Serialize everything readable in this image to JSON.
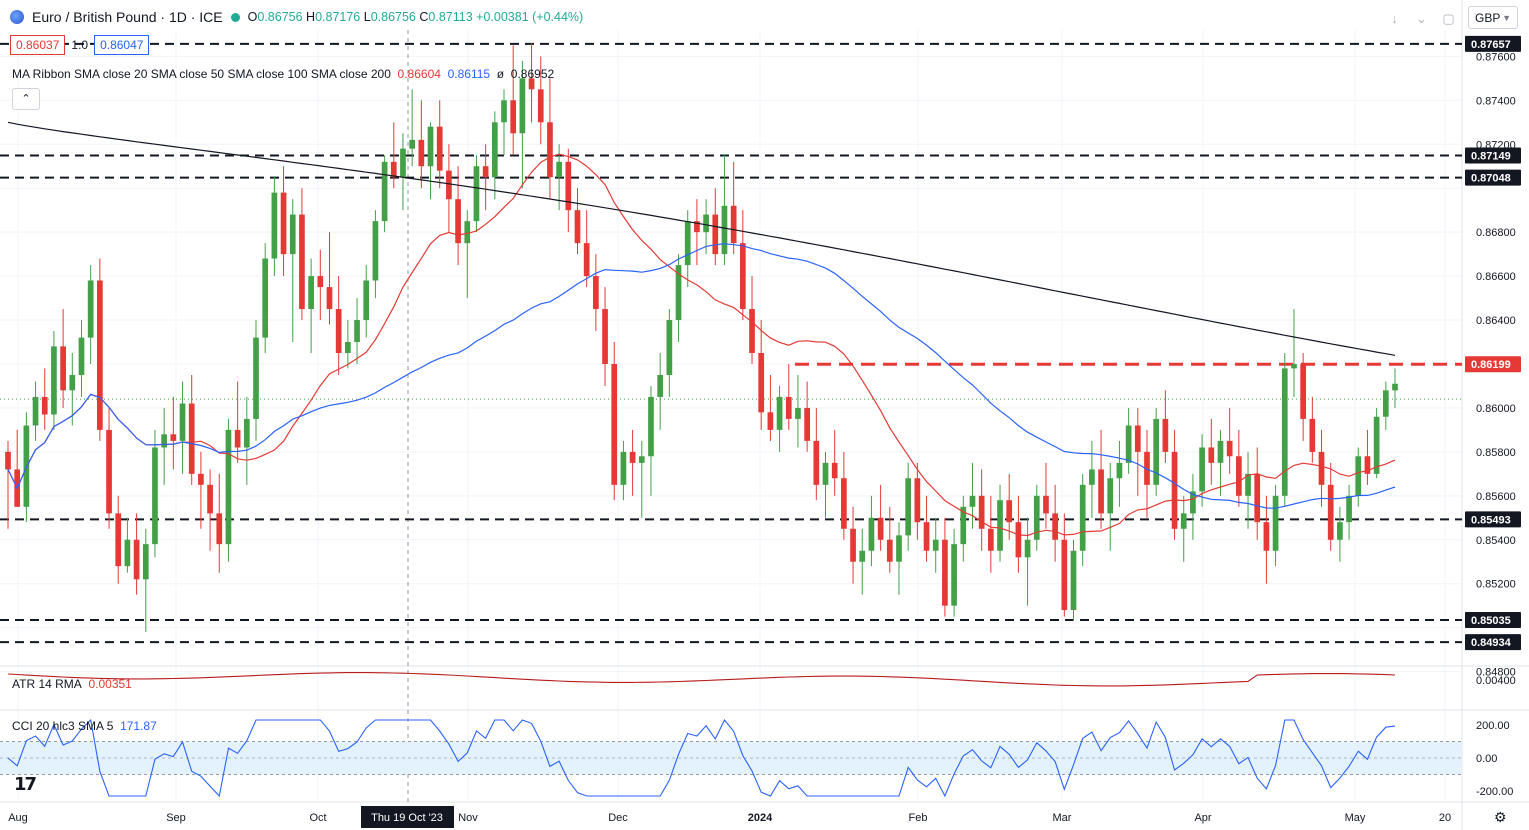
{
  "header": {
    "title": "Euro / British Pound · 1D · ICE",
    "ohlc": {
      "o_label": "O",
      "o": "0.86756",
      "h_label": "H",
      "h": "0.87176",
      "l_label": "L",
      "l": "0.86756",
      "c_label": "C",
      "c": "0.87113",
      "change": "+0.00381 (+0.44%)"
    }
  },
  "bidask": {
    "bid": "0.86037",
    "spread": "1.0",
    "ask": "0.86047"
  },
  "ma_ribbon": {
    "label": "MA Ribbon SMA close 20 SMA close 50 SMA close 100 SMA close 200",
    "v20": "0.86604",
    "v50": "0.86115",
    "v100": "ø",
    "v200": "0.86952"
  },
  "atr": {
    "label": "ATR 14 RMA",
    "value": "0.00351"
  },
  "cci": {
    "label": "CCI 20 hlc3 SMA 5",
    "value": "171.87"
  },
  "currency": "GBP",
  "colors": {
    "up": "#43a047",
    "down": "#e53935",
    "sma20": "#e53935",
    "sma50": "#2962ff",
    "sma200": "#131722",
    "atr": "#b71c1c",
    "cci": "#2962ff",
    "cci_band": "#e3f2fd"
  },
  "price_axis": [
    "0.87600",
    "0.87400",
    "0.87200",
    "0.86800",
    "0.86600",
    "0.86400",
    "0.86000",
    "0.85800",
    "0.85600",
    "0.85400",
    "0.85200",
    "0.84800"
  ],
  "levels": [
    {
      "label": "0.87657",
      "value": 0.87657,
      "style": "dash",
      "color": "#131722"
    },
    {
      "label": "0.87149",
      "value": 0.87149,
      "style": "dash",
      "color": "#131722"
    },
    {
      "label": "0.87048",
      "value": 0.87048,
      "style": "dash",
      "color": "#131722"
    },
    {
      "label": "0.86199",
      "value": 0.86199,
      "style": "dashred",
      "color": "#e53935"
    },
    {
      "label": "0.85493",
      "value": 0.85493,
      "style": "dash",
      "color": "#131722"
    },
    {
      "label": "0.85035",
      "value": 0.85035,
      "style": "dash",
      "color": "#131722"
    },
    {
      "label": "0.84934",
      "value": 0.84934,
      "style": "dash",
      "color": "#131722"
    }
  ],
  "atr_axis": [
    "0.00400"
  ],
  "cci_axis": [
    "200.00",
    "0.00",
    "-200.00"
  ],
  "time_axis": [
    "Aug",
    "Sep",
    "Oct",
    "Nov",
    "Dec",
    "2024",
    "Feb",
    "Mar",
    "Apr",
    "May",
    "20"
  ],
  "crosshair_label": "Thu 19 Oct '23",
  "chart_data": {
    "type": "candlestick",
    "series": "EUR/GBP daily",
    "ohlc": [
      [
        0.858,
        0.8585,
        0.8545,
        0.8572
      ],
      [
        0.8572,
        0.859,
        0.8555,
        0.8555
      ],
      [
        0.8555,
        0.8598,
        0.8548,
        0.8592
      ],
      [
        0.8592,
        0.8612,
        0.8585,
        0.8605
      ],
      [
        0.8605,
        0.8618,
        0.859,
        0.8597
      ],
      [
        0.8597,
        0.8635,
        0.859,
        0.8628
      ],
      [
        0.8628,
        0.8645,
        0.86,
        0.8608
      ],
      [
        0.8608,
        0.8625,
        0.8592,
        0.8615
      ],
      [
        0.8615,
        0.864,
        0.8605,
        0.8632
      ],
      [
        0.8632,
        0.8665,
        0.862,
        0.8658
      ],
      [
        0.8658,
        0.8668,
        0.8585,
        0.859
      ],
      [
        0.859,
        0.86,
        0.8545,
        0.8552
      ],
      [
        0.8552,
        0.856,
        0.852,
        0.8528
      ],
      [
        0.8528,
        0.855,
        0.8525,
        0.854
      ],
      [
        0.854,
        0.8552,
        0.8515,
        0.8522
      ],
      [
        0.8522,
        0.8545,
        0.8498,
        0.8538
      ],
      [
        0.8538,
        0.859,
        0.8532,
        0.8582
      ],
      [
        0.8582,
        0.86,
        0.8565,
        0.8588
      ],
      [
        0.8588,
        0.8605,
        0.8572,
        0.8585
      ],
      [
        0.8585,
        0.8612,
        0.857,
        0.8602
      ],
      [
        0.8602,
        0.8615,
        0.8565,
        0.857
      ],
      [
        0.857,
        0.858,
        0.8545,
        0.8565
      ],
      [
        0.8565,
        0.8572,
        0.8535,
        0.8552
      ],
      [
        0.8552,
        0.857,
        0.8525,
        0.8538
      ],
      [
        0.8538,
        0.8595,
        0.853,
        0.859
      ],
      [
        0.859,
        0.8612,
        0.8575,
        0.8582
      ],
      [
        0.8582,
        0.8605,
        0.8565,
        0.8595
      ],
      [
        0.8595,
        0.864,
        0.8585,
        0.8632
      ],
      [
        0.8632,
        0.8675,
        0.8625,
        0.8668
      ],
      [
        0.8668,
        0.8705,
        0.866,
        0.8698
      ],
      [
        0.8698,
        0.871,
        0.866,
        0.867
      ],
      [
        0.867,
        0.8695,
        0.863,
        0.8688
      ],
      [
        0.8688,
        0.87,
        0.864,
        0.8645
      ],
      [
        0.8645,
        0.8668,
        0.8625,
        0.866
      ],
      [
        0.866,
        0.8672,
        0.864,
        0.8655
      ],
      [
        0.8655,
        0.868,
        0.8638,
        0.8645
      ],
      [
        0.8645,
        0.866,
        0.8615,
        0.8625
      ],
      [
        0.8625,
        0.864,
        0.8618,
        0.863
      ],
      [
        0.863,
        0.865,
        0.862,
        0.864
      ],
      [
        0.864,
        0.8665,
        0.8632,
        0.8658
      ],
      [
        0.8658,
        0.869,
        0.865,
        0.8685
      ],
      [
        0.8685,
        0.8715,
        0.868,
        0.8712
      ],
      [
        0.8712,
        0.873,
        0.87,
        0.8705
      ],
      [
        0.8705,
        0.8725,
        0.869,
        0.8718
      ],
      [
        0.8718,
        0.8745,
        0.871,
        0.8722
      ],
      [
        0.8722,
        0.874,
        0.87,
        0.871
      ],
      [
        0.871,
        0.873,
        0.8695,
        0.8728
      ],
      [
        0.8728,
        0.874,
        0.87,
        0.8708
      ],
      [
        0.8708,
        0.872,
        0.868,
        0.8695
      ],
      [
        0.8695,
        0.871,
        0.8665,
        0.8675
      ],
      [
        0.8675,
        0.869,
        0.865,
        0.8685
      ],
      [
        0.8685,
        0.8715,
        0.868,
        0.871
      ],
      [
        0.871,
        0.872,
        0.869,
        0.8705
      ],
      [
        0.8705,
        0.8735,
        0.8695,
        0.873
      ],
      [
        0.873,
        0.8745,
        0.8715,
        0.874
      ],
      [
        0.874,
        0.8765,
        0.8715,
        0.8725
      ],
      [
        0.8725,
        0.8758,
        0.87,
        0.875
      ],
      [
        0.875,
        0.8766,
        0.873,
        0.8745
      ],
      [
        0.8745,
        0.876,
        0.872,
        0.873
      ],
      [
        0.873,
        0.875,
        0.8695,
        0.8705
      ],
      [
        0.8705,
        0.872,
        0.869,
        0.8712
      ],
      [
        0.8712,
        0.8718,
        0.868,
        0.869
      ],
      [
        0.869,
        0.87,
        0.867,
        0.8675
      ],
      [
        0.8675,
        0.869,
        0.8655,
        0.866
      ],
      [
        0.866,
        0.867,
        0.8635,
        0.8645
      ],
      [
        0.8645,
        0.8655,
        0.861,
        0.862
      ],
      [
        0.862,
        0.863,
        0.8558,
        0.8565
      ],
      [
        0.8565,
        0.8585,
        0.8558,
        0.858
      ],
      [
        0.858,
        0.859,
        0.856,
        0.8575
      ],
      [
        0.8575,
        0.8585,
        0.855,
        0.8578
      ],
      [
        0.8578,
        0.861,
        0.856,
        0.8605
      ],
      [
        0.8605,
        0.8625,
        0.859,
        0.8615
      ],
      [
        0.8615,
        0.8645,
        0.8605,
        0.864
      ],
      [
        0.864,
        0.867,
        0.863,
        0.8665
      ],
      [
        0.8665,
        0.869,
        0.8655,
        0.8685
      ],
      [
        0.8685,
        0.8695,
        0.8665,
        0.868
      ],
      [
        0.868,
        0.8695,
        0.867,
        0.8688
      ],
      [
        0.8688,
        0.87,
        0.8665,
        0.867
      ],
      [
        0.867,
        0.8715,
        0.8665,
        0.8692
      ],
      [
        0.8692,
        0.8712,
        0.867,
        0.8675
      ],
      [
        0.8675,
        0.869,
        0.864,
        0.8645
      ],
      [
        0.8645,
        0.866,
        0.862,
        0.8625
      ],
      [
        0.8625,
        0.864,
        0.859,
        0.8598
      ],
      [
        0.8598,
        0.8615,
        0.8585,
        0.859
      ],
      [
        0.859,
        0.861,
        0.858,
        0.8605
      ],
      [
        0.8605,
        0.862,
        0.859,
        0.8595
      ],
      [
        0.8595,
        0.8615,
        0.8582,
        0.86
      ],
      [
        0.86,
        0.8612,
        0.858,
        0.8585
      ],
      [
        0.8585,
        0.86,
        0.8558,
        0.8565
      ],
      [
        0.8565,
        0.858,
        0.855,
        0.8575
      ],
      [
        0.8575,
        0.859,
        0.856,
        0.8568
      ],
      [
        0.8568,
        0.858,
        0.854,
        0.8545
      ],
      [
        0.8545,
        0.8555,
        0.852,
        0.853
      ],
      [
        0.853,
        0.8545,
        0.8515,
        0.8535
      ],
      [
        0.8535,
        0.856,
        0.8528,
        0.855
      ],
      [
        0.855,
        0.8565,
        0.8535,
        0.854
      ],
      [
        0.854,
        0.8555,
        0.8525,
        0.853
      ],
      [
        0.853,
        0.8548,
        0.8515,
        0.8542
      ],
      [
        0.8542,
        0.8575,
        0.8535,
        0.8568
      ],
      [
        0.8568,
        0.8575,
        0.854,
        0.8548
      ],
      [
        0.8548,
        0.856,
        0.853,
        0.8535
      ],
      [
        0.8535,
        0.855,
        0.8525,
        0.854
      ],
      [
        0.854,
        0.855,
        0.8505,
        0.851
      ],
      [
        0.851,
        0.8545,
        0.8505,
        0.8538
      ],
      [
        0.8538,
        0.856,
        0.853,
        0.8555
      ],
      [
        0.8555,
        0.8575,
        0.8545,
        0.856
      ],
      [
        0.856,
        0.8572,
        0.8535,
        0.8545
      ],
      [
        0.8545,
        0.856,
        0.8525,
        0.8535
      ],
      [
        0.8535,
        0.8565,
        0.853,
        0.8558
      ],
      [
        0.8558,
        0.857,
        0.854,
        0.8548
      ],
      [
        0.8548,
        0.856,
        0.8525,
        0.8532
      ],
      [
        0.8532,
        0.855,
        0.851,
        0.854
      ],
      [
        0.854,
        0.8565,
        0.8535,
        0.856
      ],
      [
        0.856,
        0.8575,
        0.8545,
        0.8552
      ],
      [
        0.8552,
        0.8565,
        0.853,
        0.854
      ],
      [
        0.854,
        0.8552,
        0.8505,
        0.8508
      ],
      [
        0.8508,
        0.854,
        0.8503,
        0.8535
      ],
      [
        0.8535,
        0.857,
        0.8528,
        0.8565
      ],
      [
        0.8565,
        0.8585,
        0.855,
        0.8572
      ],
      [
        0.8572,
        0.859,
        0.8545,
        0.8552
      ],
      [
        0.8552,
        0.8575,
        0.8535,
        0.8568
      ],
      [
        0.8568,
        0.8585,
        0.8555,
        0.8575
      ],
      [
        0.8575,
        0.86,
        0.857,
        0.8592
      ],
      [
        0.8592,
        0.86,
        0.856,
        0.858
      ],
      [
        0.858,
        0.859,
        0.855,
        0.8565
      ],
      [
        0.8565,
        0.86,
        0.856,
        0.8595
      ],
      [
        0.8595,
        0.8608,
        0.8575,
        0.858
      ],
      [
        0.858,
        0.859,
        0.854,
        0.8545
      ],
      [
        0.8545,
        0.856,
        0.853,
        0.8552
      ],
      [
        0.8552,
        0.857,
        0.854,
        0.8562
      ],
      [
        0.8562,
        0.8588,
        0.8555,
        0.8582
      ],
      [
        0.8582,
        0.8595,
        0.8565,
        0.8575
      ],
      [
        0.8575,
        0.859,
        0.856,
        0.8585
      ],
      [
        0.8585,
        0.86,
        0.857,
        0.8578
      ],
      [
        0.8578,
        0.859,
        0.8555,
        0.856
      ],
      [
        0.856,
        0.858,
        0.8545,
        0.857
      ],
      [
        0.857,
        0.8582,
        0.854,
        0.8548
      ],
      [
        0.8548,
        0.856,
        0.852,
        0.8535
      ],
      [
        0.8535,
        0.8565,
        0.8528,
        0.856
      ],
      [
        0.856,
        0.8625,
        0.8555,
        0.8618
      ],
      [
        0.8618,
        0.8645,
        0.8605,
        0.862
      ],
      [
        0.862,
        0.8625,
        0.8585,
        0.8595
      ],
      [
        0.8595,
        0.8605,
        0.8575,
        0.858
      ],
      [
        0.858,
        0.859,
        0.8555,
        0.8565
      ],
      [
        0.8565,
        0.8575,
        0.8535,
        0.854
      ],
      [
        0.854,
        0.8555,
        0.853,
        0.8548
      ],
      [
        0.8548,
        0.8565,
        0.854,
        0.856
      ],
      [
        0.856,
        0.8582,
        0.8555,
        0.8578
      ],
      [
        0.8578,
        0.859,
        0.8565,
        0.857
      ],
      [
        0.857,
        0.86,
        0.8568,
        0.8596
      ],
      [
        0.8596,
        0.8612,
        0.859,
        0.8608
      ],
      [
        0.8608,
        0.8618,
        0.86,
        0.8611
      ]
    ],
    "sma20_label": "SMA close 20",
    "sma50_label": "SMA close 50",
    "sma200_label": "SMA close 200"
  }
}
